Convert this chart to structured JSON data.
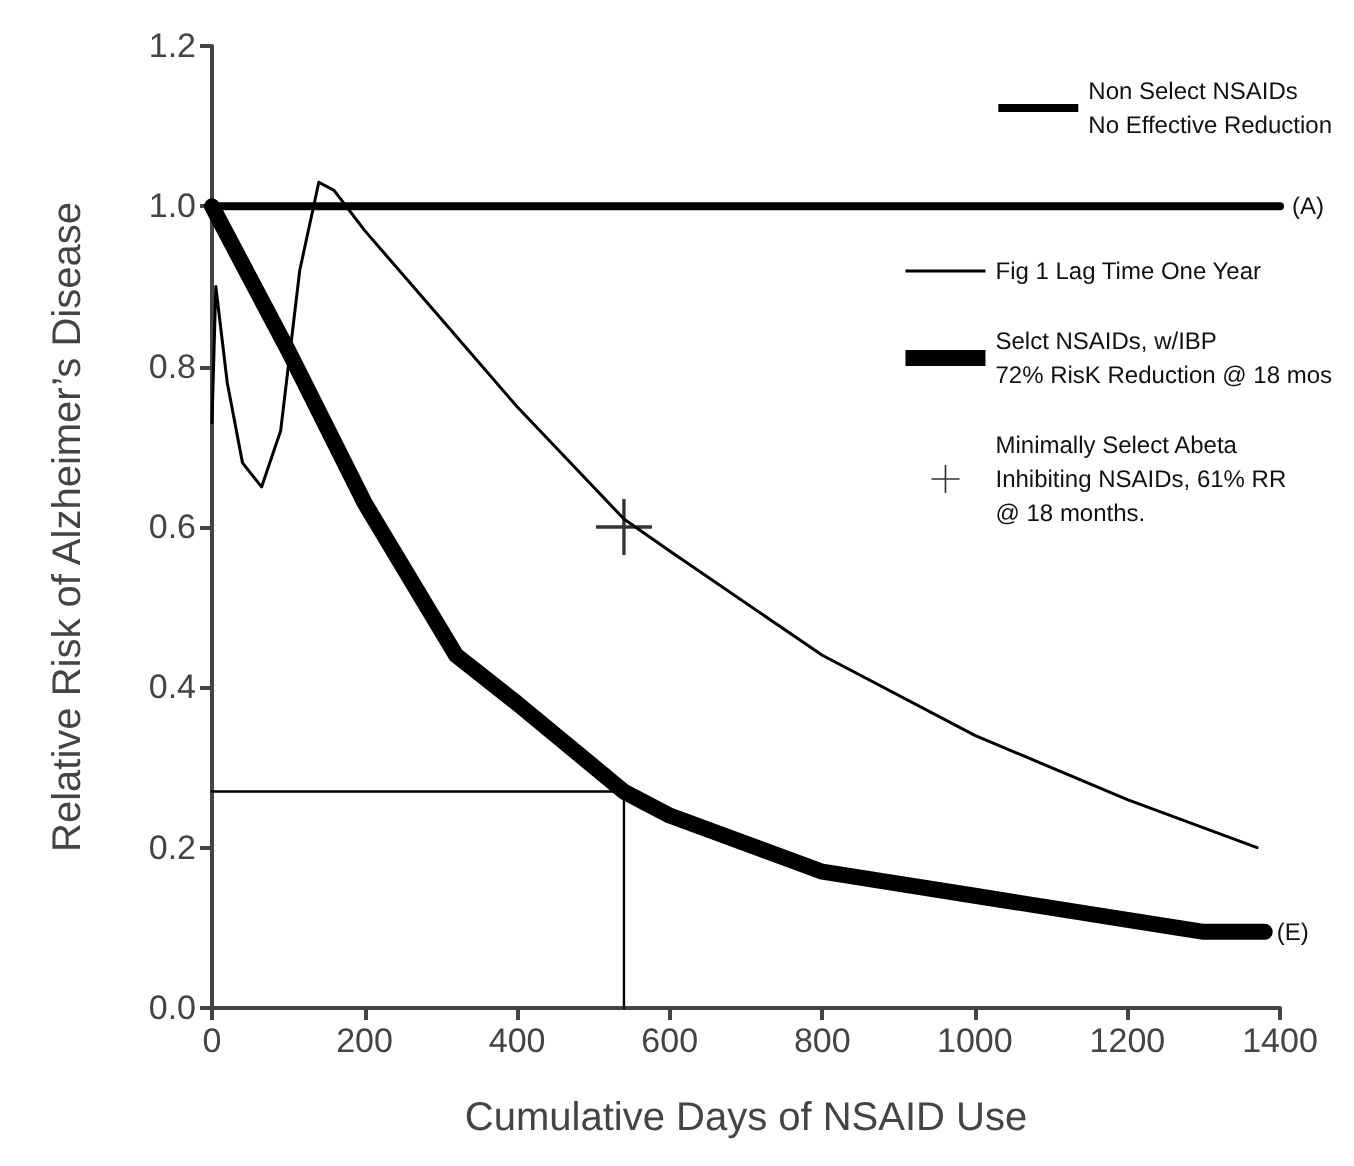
{
  "chart_data": {
    "type": "line",
    "xlabel": "Cumulative Days of NSAID Use",
    "ylabel": "Relative Risk of Alzheimer’s Disease",
    "xlim": [
      0,
      1400
    ],
    "xticks": [
      0,
      200,
      400,
      600,
      800,
      1000,
      1200,
      1400
    ],
    "ylim": [
      0,
      1.2
    ],
    "yticks": [
      {
        "value": 0,
        "label": "0.0"
      },
      {
        "value": 0.2,
        "label": "0.2"
      },
      {
        "value": 0.4,
        "label": "0.4"
      },
      {
        "value": 0.6,
        "label": "0.6"
      },
      {
        "value": 0.8,
        "label": "0.8"
      },
      {
        "value": 1.0,
        "label": "1.0"
      },
      {
        "value": 1.2,
        "label": "1.2"
      }
    ],
    "grid": false,
    "legend": "right",
    "marker": "none",
    "line_style": "solid",
    "series": [
      {
        "name": "Non Select NSAIDs\nNo Effective Reduction",
        "color": "#000000",
        "x": [
          0,
          1400
        ],
        "values": [
          1.0,
          1.0
        ]
      },
      {
        "name": "Fig 1 Lag Time One Year",
        "color": "#000000",
        "x": [
          0,
          5,
          20,
          40,
          65,
          90,
          115,
          140,
          160,
          200,
          300,
          400,
          540,
          600,
          800,
          1000,
          1200,
          1370
        ],
        "values": [
          0.73,
          0.9,
          0.78,
          0.68,
          0.65,
          0.72,
          0.92,
          1.03,
          1.02,
          0.97,
          0.86,
          0.75,
          0.61,
          0.57,
          0.44,
          0.34,
          0.26,
          0.2
        ]
      },
      {
        "name": "Selct NSAIDs, w/IBP\n72% RisK Reduction @ 18 mos",
        "color": "#000000",
        "x": [
          0,
          100,
          200,
          320,
          400,
          540,
          600,
          800,
          1000,
          1200,
          1300,
          1380
        ],
        "values": [
          1.0,
          0.82,
          0.63,
          0.44,
          0.38,
          0.27,
          0.24,
          0.17,
          0.14,
          0.11,
          0.095,
          0.095
        ]
      },
      {
        "name": "Minimally Select Abeta\nInhibiting NSAIDs, 61% RR\n@ 18 months.",
        "type": "scatter",
        "marker": "cross",
        "color": "#000000",
        "x": [
          540
        ],
        "values": [
          0.6
        ]
      },
      {
        "color": "#000000",
        "x": [
          0,
          540,
          540
        ],
        "values": [
          0.27,
          0.27,
          0
        ]
      }
    ],
    "annotations": [
      {
        "text": "(A)",
        "x": 1400,
        "y": 1.0
      },
      {
        "text": "(E)",
        "x": 1380,
        "y": 0.095
      }
    ]
  }
}
